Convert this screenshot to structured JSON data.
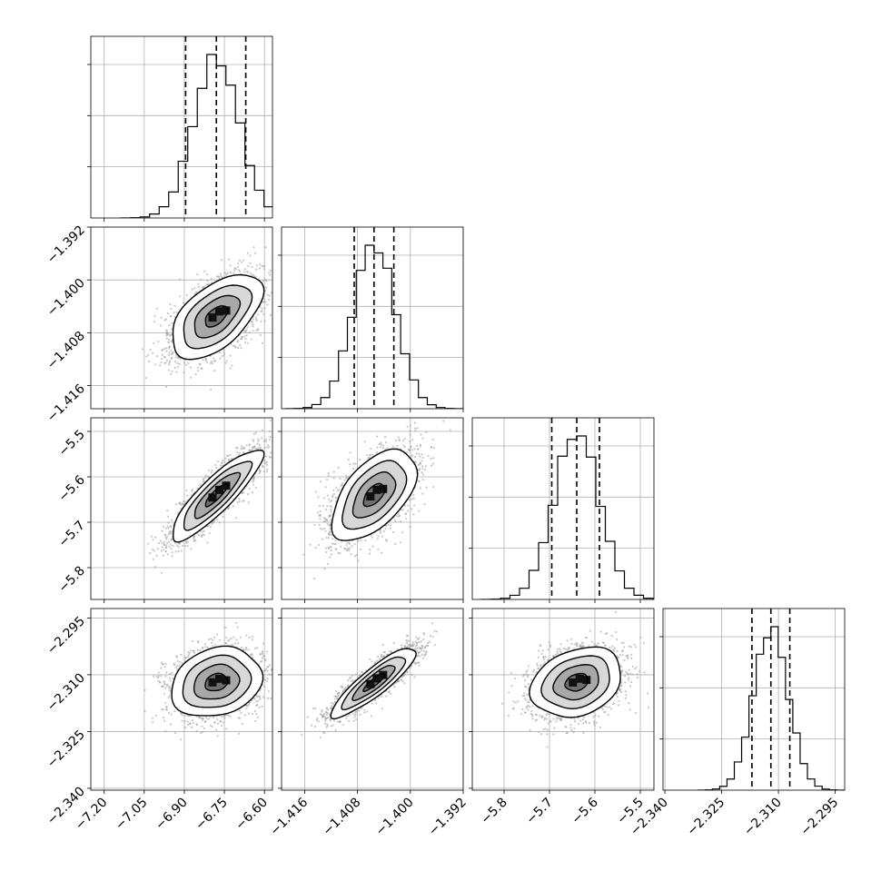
{
  "chart_data": {
    "type": "corner",
    "title": "",
    "grid": true,
    "parameters": [
      {
        "mean": -6.78,
        "sigma": 0.085,
        "quantiles": [
          -6.895,
          -6.78,
          -6.67
        ],
        "range": [
          -7.25,
          -6.57
        ],
        "ticks": [
          "-7.20",
          "-7.05",
          "-6.90",
          "-6.75",
          "-6.60"
        ]
      },
      {
        "mean": -1.4055,
        "sigma": 0.0032,
        "quantiles": [
          -1.4085,
          -1.4055,
          -1.4025
        ],
        "range": [
          -1.4195,
          -1.392
        ],
        "ticks": [
          "-1.416",
          "-1.408",
          "-1.400",
          "-1.392"
        ]
      },
      {
        "mean": -5.64,
        "sigma": 0.05,
        "quantiles": [
          -5.695,
          -5.64,
          -5.59
        ],
        "range": [
          -5.87,
          -5.47
        ],
        "ticks": [
          "-5.8",
          "-5.7",
          "-5.6",
          "-5.5"
        ]
      },
      {
        "mean": -2.312,
        "sigma": 0.0046,
        "quantiles": [
          -2.317,
          -2.312,
          -2.307
        ],
        "range": [
          -2.3405,
          -2.2925
        ],
        "ticks": [
          "-2.340",
          "-2.325",
          "-2.310",
          "-2.295"
        ]
      }
    ],
    "correlations": [
      {
        "i": 1,
        "j": 0,
        "rho": 0.55
      },
      {
        "i": 2,
        "j": 0,
        "rho": 0.87
      },
      {
        "i": 2,
        "j": 1,
        "rho": 0.55
      },
      {
        "i": 3,
        "j": 0,
        "rho": 0.2
      },
      {
        "i": 3,
        "j": 1,
        "rho": 0.88
      },
      {
        "i": 3,
        "j": 2,
        "rho": 0.25
      }
    ],
    "histogram_bins": 20,
    "contour_levels_sigma": [
      0.5,
      1.0,
      1.5,
      2.0
    ],
    "colors": {
      "line": "#000000",
      "grid": "#b0b0b0",
      "point": "#9a9a9a",
      "frame": "#000000"
    }
  }
}
